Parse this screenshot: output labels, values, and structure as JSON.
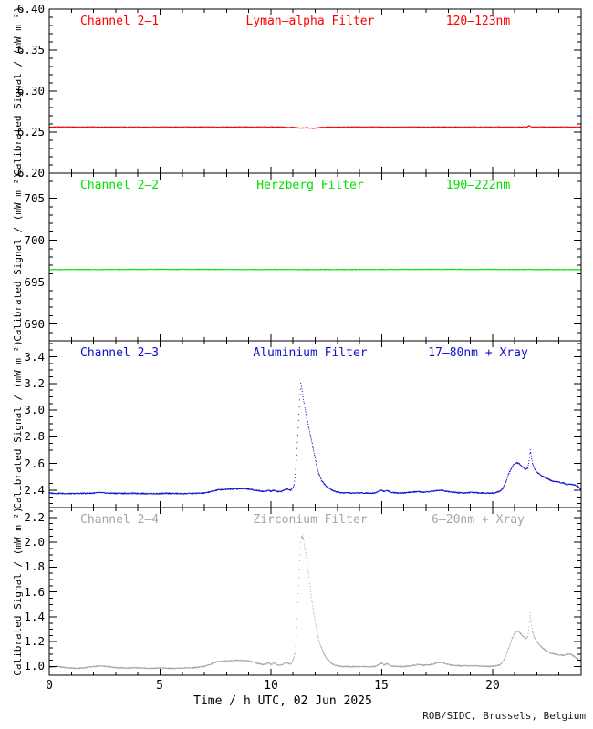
{
  "figure": {
    "background": "#ffffff",
    "frame_color": "#000000"
  },
  "footer": {
    "credit": "ROB/SIDC, Brussels, Belgium"
  },
  "chart_data": {
    "type": "line",
    "xlabel": "Time / h UTC, 02 Jun 2025",
    "x_range": [
      0,
      24
    ],
    "x_major_ticks": [
      0,
      5,
      10,
      15,
      20
    ],
    "x_tick_labels": [
      "0",
      "5",
      "10",
      "15",
      "20"
    ],
    "x_minor_step": 1,
    "grid": false,
    "legend": "none",
    "panels": [
      {
        "channel": "Channel 2–1",
        "filter": "Lyman–alpha Filter",
        "range": "120–123nm",
        "color": "#ff0000",
        "ylabel": "Calibrated Signal / (mW m⁻²)",
        "ylim": [
          6.2,
          6.4
        ],
        "yticks": [
          6.2,
          6.25,
          6.3,
          6.35,
          6.4
        ],
        "ytick_labels": [
          "6.20",
          "6.25",
          "6.30",
          "6.35",
          "6.40"
        ],
        "y_minor_step": 0.01,
        "noise": 0.0004,
        "points": [
          [
            0,
            6.2562
          ],
          [
            10.5,
            6.2562
          ],
          [
            10.8,
            6.2555
          ],
          [
            11.0,
            6.256
          ],
          [
            11.3,
            6.2548
          ],
          [
            11.6,
            6.2552
          ],
          [
            11.9,
            6.2545
          ],
          [
            12.2,
            6.2555
          ],
          [
            12.5,
            6.256
          ],
          [
            13.0,
            6.2562
          ],
          [
            21.55,
            6.2562
          ],
          [
            21.65,
            6.258
          ],
          [
            21.75,
            6.2562
          ],
          [
            24,
            6.2562
          ]
        ]
      },
      {
        "channel": "Channel 2–2",
        "filter": "Herzberg Filter",
        "range": "190–222nm",
        "color": "#00e100",
        "ylabel": "Calibrated Signal / (mW m⁻²)",
        "ylim": [
          688,
          708
        ],
        "yticks": [
          690,
          695,
          700,
          705
        ],
        "ytick_labels": [
          "690",
          "695",
          "700",
          "705"
        ],
        "y_minor_step": 1,
        "noise": 0.03,
        "points": [
          [
            0,
            696.5
          ],
          [
            6,
            696.52
          ],
          [
            12,
            696.5
          ],
          [
            18,
            696.52
          ],
          [
            24,
            696.5
          ]
        ]
      },
      {
        "channel": "Channel 2–3",
        "filter": "Aluminium Filter",
        "range": "17–80nm + Xray",
        "color": "#1111cc",
        "ylabel": "Calibrated Signal / (mW m⁻²)",
        "ylim": [
          2.27,
          3.52
        ],
        "yticks": [
          2.4,
          2.6,
          2.8,
          3.0,
          3.2,
          3.4
        ],
        "ytick_labels": [
          "2.4",
          "2.6",
          "2.8",
          "3.0",
          "3.2",
          "3.4"
        ],
        "y_minor_step": 0.05,
        "noise": 0.004,
        "points": [
          [
            0,
            2.378
          ],
          [
            0.5,
            2.376
          ],
          [
            1.0,
            2.374
          ],
          [
            1.5,
            2.376
          ],
          [
            2.0,
            2.378
          ],
          [
            2.3,
            2.382
          ],
          [
            2.6,
            2.378
          ],
          [
            3.2,
            2.376
          ],
          [
            4.0,
            2.376
          ],
          [
            4.8,
            2.374
          ],
          [
            5.4,
            2.376
          ],
          [
            6.0,
            2.374
          ],
          [
            6.5,
            2.376
          ],
          [
            7.0,
            2.378
          ],
          [
            7.3,
            2.39
          ],
          [
            7.6,
            2.402
          ],
          [
            8.0,
            2.408
          ],
          [
            8.4,
            2.41
          ],
          [
            8.8,
            2.412
          ],
          [
            9.1,
            2.405
          ],
          [
            9.4,
            2.398
          ],
          [
            9.7,
            2.39
          ],
          [
            9.9,
            2.4
          ],
          [
            10.0,
            2.392
          ],
          [
            10.15,
            2.4
          ],
          [
            10.3,
            2.39
          ],
          [
            10.5,
            2.392
          ],
          [
            10.7,
            2.41
          ],
          [
            10.9,
            2.4
          ],
          [
            11.0,
            2.42
          ],
          [
            11.05,
            2.44
          ],
          [
            11.1,
            2.52
          ],
          [
            11.15,
            2.62
          ],
          [
            11.2,
            2.76
          ],
          [
            11.25,
            2.92
          ],
          [
            11.3,
            3.08
          ],
          [
            11.35,
            3.2
          ],
          [
            11.4,
            3.16
          ],
          [
            11.45,
            3.1
          ],
          [
            11.55,
            3.0
          ],
          [
            11.65,
            2.92
          ],
          [
            11.75,
            2.84
          ],
          [
            11.85,
            2.76
          ],
          [
            11.95,
            2.68
          ],
          [
            12.05,
            2.6
          ],
          [
            12.15,
            2.53
          ],
          [
            12.3,
            2.47
          ],
          [
            12.5,
            2.43
          ],
          [
            12.7,
            2.405
          ],
          [
            12.9,
            2.39
          ],
          [
            13.2,
            2.38
          ],
          [
            13.6,
            2.378
          ],
          [
            14.0,
            2.38
          ],
          [
            14.4,
            2.378
          ],
          [
            14.7,
            2.38
          ],
          [
            14.9,
            2.395
          ],
          [
            15.0,
            2.4
          ],
          [
            15.1,
            2.39
          ],
          [
            15.25,
            2.398
          ],
          [
            15.4,
            2.385
          ],
          [
            15.7,
            2.38
          ],
          [
            16.0,
            2.38
          ],
          [
            16.3,
            2.384
          ],
          [
            16.6,
            2.39
          ],
          [
            16.9,
            2.385
          ],
          [
            17.2,
            2.39
          ],
          [
            17.5,
            2.398
          ],
          [
            17.7,
            2.4
          ],
          [
            17.9,
            2.392
          ],
          [
            18.2,
            2.385
          ],
          [
            18.6,
            2.38
          ],
          [
            19.0,
            2.382
          ],
          [
            19.4,
            2.38
          ],
          [
            19.8,
            2.378
          ],
          [
            20.1,
            2.38
          ],
          [
            20.3,
            2.39
          ],
          [
            20.45,
            2.41
          ],
          [
            20.6,
            2.46
          ],
          [
            20.75,
            2.53
          ],
          [
            20.9,
            2.58
          ],
          [
            21.0,
            2.6
          ],
          [
            21.1,
            2.605
          ],
          [
            21.2,
            2.6
          ],
          [
            21.35,
            2.575
          ],
          [
            21.5,
            2.555
          ],
          [
            21.6,
            2.57
          ],
          [
            21.65,
            2.62
          ],
          [
            21.7,
            2.7
          ],
          [
            21.75,
            2.66
          ],
          [
            21.8,
            2.6
          ],
          [
            21.9,
            2.56
          ],
          [
            22.0,
            2.535
          ],
          [
            22.2,
            2.51
          ],
          [
            22.4,
            2.495
          ],
          [
            22.6,
            2.475
          ],
          [
            22.8,
            2.465
          ],
          [
            23.0,
            2.46
          ],
          [
            23.2,
            2.455
          ],
          [
            23.35,
            2.44
          ],
          [
            23.5,
            2.445
          ],
          [
            23.7,
            2.44
          ],
          [
            23.85,
            2.43
          ],
          [
            24,
            2.4
          ]
        ]
      },
      {
        "channel": "Channel 2–4",
        "filter": "Zirconium Filter",
        "range": "6–20nm + Xray",
        "color": "#a6a6a6",
        "ylabel": "Calibrated Signal / (mW m⁻²)",
        "ylim": [
          0.93,
          2.28
        ],
        "yticks": [
          1.0,
          1.2,
          1.4,
          1.6,
          1.8,
          2.0,
          2.2
        ],
        "ytick_labels": [
          "1.0",
          "1.2",
          "1.4",
          "1.6",
          "1.8",
          "2.0",
          "2.2"
        ],
        "y_minor_step": 0.05,
        "noise": 0.004,
        "points": [
          [
            0,
            0.995
          ],
          [
            0.4,
            1.0
          ],
          [
            0.8,
            0.99
          ],
          [
            1.2,
            0.985
          ],
          [
            1.6,
            0.99
          ],
          [
            2.0,
            1.0
          ],
          [
            2.3,
            1.005
          ],
          [
            2.6,
            1.0
          ],
          [
            3.0,
            0.99
          ],
          [
            3.5,
            0.988
          ],
          [
            4.0,
            0.99
          ],
          [
            4.5,
            0.985
          ],
          [
            5.0,
            0.988
          ],
          [
            5.5,
            0.985
          ],
          [
            6.0,
            0.988
          ],
          [
            6.5,
            0.99
          ],
          [
            7.0,
            1.0
          ],
          [
            7.3,
            1.02
          ],
          [
            7.6,
            1.04
          ],
          [
            8.0,
            1.045
          ],
          [
            8.4,
            1.05
          ],
          [
            8.8,
            1.05
          ],
          [
            9.1,
            1.04
          ],
          [
            9.4,
            1.025
          ],
          [
            9.7,
            1.015
          ],
          [
            9.9,
            1.03
          ],
          [
            10.0,
            1.015
          ],
          [
            10.15,
            1.03
          ],
          [
            10.3,
            1.01
          ],
          [
            10.5,
            1.015
          ],
          [
            10.7,
            1.03
          ],
          [
            10.9,
            1.02
          ],
          [
            11.0,
            1.05
          ],
          [
            11.1,
            1.12
          ],
          [
            11.15,
            1.25
          ],
          [
            11.2,
            1.45
          ],
          [
            11.25,
            1.65
          ],
          [
            11.3,
            1.85
          ],
          [
            11.35,
            2.0
          ],
          [
            11.38,
            2.05
          ],
          [
            11.42,
            2.03
          ],
          [
            11.45,
            2.06
          ],
          [
            11.5,
            1.99
          ],
          [
            11.6,
            1.88
          ],
          [
            11.7,
            1.74
          ],
          [
            11.8,
            1.6
          ],
          [
            11.9,
            1.47
          ],
          [
            12.0,
            1.36
          ],
          [
            12.1,
            1.27
          ],
          [
            12.2,
            1.19
          ],
          [
            12.35,
            1.12
          ],
          [
            12.5,
            1.07
          ],
          [
            12.7,
            1.03
          ],
          [
            12.9,
            1.01
          ],
          [
            13.2,
            1.0
          ],
          [
            13.6,
            0.998
          ],
          [
            14.0,
            1.0
          ],
          [
            14.4,
            0.998
          ],
          [
            14.7,
            1.0
          ],
          [
            14.9,
            1.02
          ],
          [
            15.0,
            1.03
          ],
          [
            15.1,
            1.01
          ],
          [
            15.25,
            1.025
          ],
          [
            15.4,
            1.005
          ],
          [
            15.7,
            1.0
          ],
          [
            16.0,
            1.0
          ],
          [
            16.3,
            1.005
          ],
          [
            16.6,
            1.015
          ],
          [
            16.9,
            1.01
          ],
          [
            17.2,
            1.015
          ],
          [
            17.5,
            1.03
          ],
          [
            17.7,
            1.035
          ],
          [
            17.9,
            1.02
          ],
          [
            18.2,
            1.01
          ],
          [
            18.6,
            1.005
          ],
          [
            19.0,
            1.008
          ],
          [
            19.4,
            1.005
          ],
          [
            19.8,
            1.0
          ],
          [
            20.1,
            1.005
          ],
          [
            20.3,
            1.01
          ],
          [
            20.45,
            1.03
          ],
          [
            20.6,
            1.08
          ],
          [
            20.75,
            1.16
          ],
          [
            20.9,
            1.23
          ],
          [
            21.0,
            1.27
          ],
          [
            21.1,
            1.285
          ],
          [
            21.2,
            1.28
          ],
          [
            21.35,
            1.25
          ],
          [
            21.5,
            1.22
          ],
          [
            21.6,
            1.24
          ],
          [
            21.65,
            1.32
          ],
          [
            21.7,
            1.43
          ],
          [
            21.75,
            1.36
          ],
          [
            21.8,
            1.28
          ],
          [
            21.9,
            1.23
          ],
          [
            22.0,
            1.2
          ],
          [
            22.2,
            1.16
          ],
          [
            22.4,
            1.13
          ],
          [
            22.6,
            1.11
          ],
          [
            22.8,
            1.1
          ],
          [
            23.0,
            1.095
          ],
          [
            23.2,
            1.09
          ],
          [
            23.35,
            1.1
          ],
          [
            23.5,
            1.1
          ],
          [
            23.7,
            1.08
          ],
          [
            23.85,
            1.06
          ],
          [
            24,
            1.045
          ]
        ]
      }
    ]
  }
}
